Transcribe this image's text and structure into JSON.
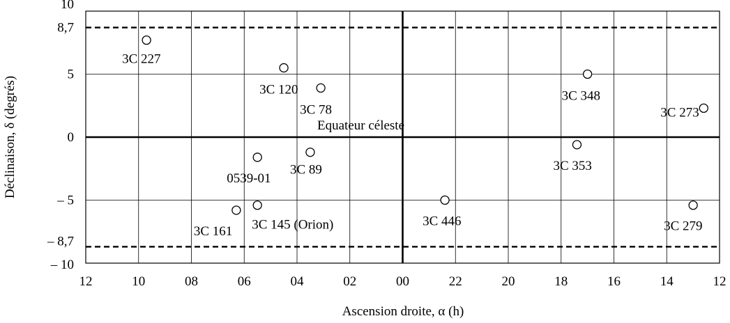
{
  "chart_data": {
    "type": "scatter",
    "xlabel": "Ascension droite, α (h)",
    "ylabel": "Déclinaison, δ (degrés)",
    "x_ticks": [
      "12",
      "10",
      "08",
      "06",
      "04",
      "02",
      "00",
      "22",
      "20",
      "18",
      "16",
      "14",
      "12"
    ],
    "y_tick_labels": [
      {
        "value": 10,
        "label": "10"
      },
      {
        "value": 8.7,
        "label": "8,7"
      },
      {
        "value": 5,
        "label": "5"
      },
      {
        "value": 0,
        "label": "0"
      },
      {
        "value": -5,
        "label": "– 5"
      },
      {
        "value": -8.7,
        "label": "– 8,7"
      },
      {
        "value": -10,
        "label": "– 10"
      }
    ],
    "ylim": [
      -10,
      10
    ],
    "x_direction": "right-to-left, from 12 h through 00 h to 12 h",
    "reference_lines": [
      {
        "value": 8.7,
        "style": "dashed"
      },
      {
        "value": -8.7,
        "style": "dashed"
      }
    ],
    "equator_label": "Equateur céleste",
    "points": [
      {
        "label": "3C 227",
        "ra": 9.7,
        "dec": 7.7
      },
      {
        "label": "3C 120",
        "ra": 4.5,
        "dec": 5.5
      },
      {
        "label": "3C 78",
        "ra": 3.1,
        "dec": 3.9
      },
      {
        "label": "0539-01",
        "ra": 5.5,
        "dec": -1.6
      },
      {
        "label": "3C 89",
        "ra": 3.5,
        "dec": -1.2
      },
      {
        "label": "3C 161",
        "ra": 6.3,
        "dec": -5.8
      },
      {
        "label": "3C 145 (Orion)",
        "ra": 5.5,
        "dec": -5.4
      },
      {
        "label": "3C 446",
        "ra": 22.4,
        "dec": -5.0
      },
      {
        "label": "3C 348",
        "ra": 17.0,
        "dec": 5.0
      },
      {
        "label": "3C 353",
        "ra": 17.4,
        "dec": -0.6
      },
      {
        "label": "3C 273",
        "ra": 12.6,
        "dec": 2.3
      },
      {
        "label": "3C 279",
        "ra": 13.0,
        "dec": -5.4
      }
    ]
  }
}
